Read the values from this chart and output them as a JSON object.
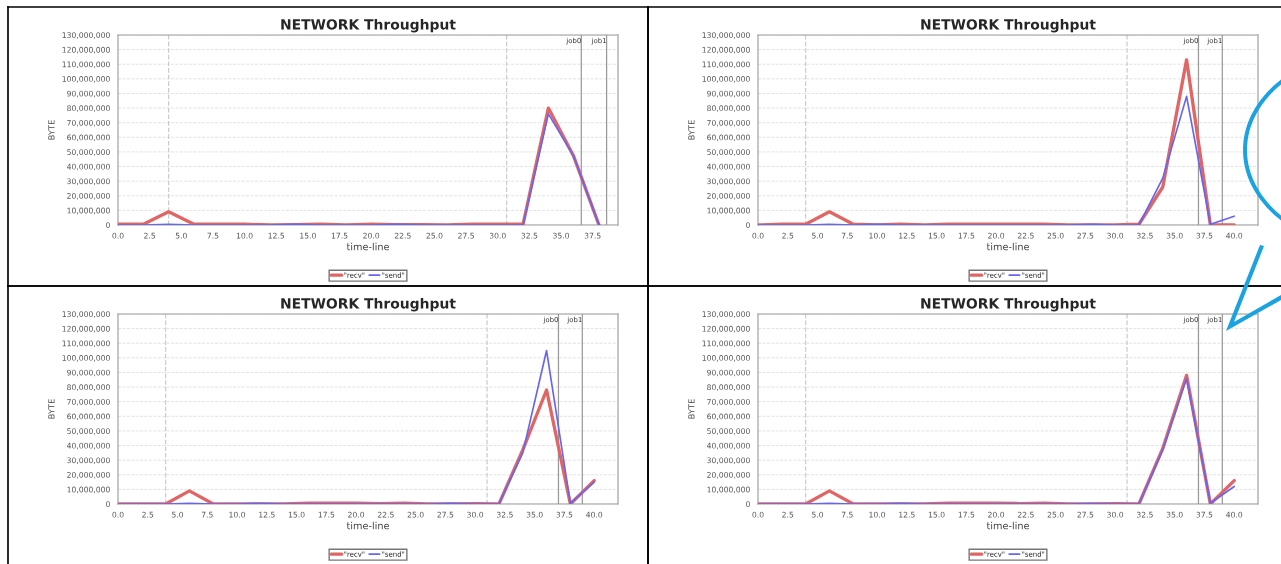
{
  "chart_data": [
    {
      "type": "line",
      "title": "NETWORK Throughput",
      "xlabel": "time-line",
      "ylabel": "BYTE",
      "x": [
        0,
        2,
        4,
        6,
        8,
        10,
        12,
        14,
        16,
        18,
        20,
        22,
        24,
        26,
        28,
        30,
        32,
        34,
        36,
        38
      ],
      "series": [
        {
          "name": "\"recv\"",
          "color": "#e06666",
          "values": [
            500000,
            500000,
            9000000,
            500000,
            500000,
            500000,
            0,
            300000,
            500000,
            0,
            500000,
            300000,
            300000,
            0,
            500000,
            500000,
            500000,
            80000000,
            47000000,
            0
          ]
        },
        {
          "name": "\"send\"",
          "color": "#6666ee",
          "values": [
            0,
            0,
            500000,
            0,
            0,
            0,
            0,
            500000,
            0,
            0,
            0,
            500000,
            0,
            0,
            0,
            0,
            0,
            76000000,
            47000000,
            0
          ]
        }
      ],
      "xlim": [
        0,
        39.5
      ],
      "xticks": [
        {
          "value": 0,
          "label": "0.0"
        },
        {
          "value": 2.5,
          "label": "2.5"
        },
        {
          "value": 5,
          "label": "5.0"
        },
        {
          "value": 7.5,
          "label": "7.5"
        },
        {
          "value": 10,
          "label": "10.0"
        },
        {
          "value": 12.5,
          "label": "12.5"
        },
        {
          "value": 15,
          "label": "15.0"
        },
        {
          "value": 17.5,
          "label": "17.5"
        },
        {
          "value": 20,
          "label": "20.0"
        },
        {
          "value": 22.5,
          "label": "22.5"
        },
        {
          "value": 25,
          "label": "25.0"
        },
        {
          "value": 27.5,
          "label": "27.5"
        },
        {
          "value": 30,
          "label": "30.0"
        },
        {
          "value": 32.5,
          "label": "32.5"
        },
        {
          "value": 35,
          "label": "35.0"
        },
        {
          "value": 37.5,
          "label": "37.5"
        }
      ],
      "ylim": [
        0,
        130000000
      ],
      "yticks": [
        0,
        {
          "value": 10000000,
          "label": "10,000,000"
        },
        {
          "value": 20000000,
          "label": "20,000,000"
        },
        {
          "value": 30000000,
          "label": "30,000,000"
        },
        {
          "value": 40000000,
          "label": "40,000,000"
        },
        {
          "value": 50000000,
          "label": "50,000,000"
        },
        {
          "value": 60000000,
          "label": "60,000,000"
        },
        {
          "value": 70000000,
          "label": "70,000,000"
        },
        {
          "value": 80000000,
          "label": "80,000,000"
        },
        {
          "value": 90000000,
          "label": "90,000,000"
        },
        {
          "value": 100000000,
          "label": "100,000,000"
        },
        {
          "value": 110000000,
          "label": "110,000,000"
        },
        {
          "value": 120000000,
          "label": "120,000,000"
        },
        {
          "value": 130000000,
          "label": "130,000,000"
        }
      ],
      "ref_lines": [
        {
          "axis": "x",
          "value": 4,
          "line_style": "dashed",
          "color": "#cccccc"
        },
        {
          "axis": "x",
          "value": 30.7,
          "line_style": "dashed",
          "color": "#cccccc"
        },
        {
          "axis": "x",
          "value": 36.6,
          "label": "job0",
          "line_style": "solid",
          "color": "#999999"
        },
        {
          "axis": "x",
          "value": 38.6,
          "label": "job1",
          "line_style": "solid",
          "color": "#999999"
        }
      ],
      "grid": "y",
      "legend": "bottom",
      "marker": "none",
      "line_style": "solid"
    },
    {
      "type": "line",
      "title": "NETWORK Throughput",
      "xlabel": "time-line",
      "ylabel": "BYTE",
      "x": [
        0,
        2,
        4,
        6,
        8,
        10,
        12,
        14,
        16,
        18,
        20,
        22,
        24,
        26,
        28,
        30,
        32,
        34,
        36,
        38,
        40
      ],
      "series": [
        {
          "name": "\"recv\"",
          "color": "#e06666",
          "values": [
            0,
            500000,
            500000,
            9000000,
            500000,
            0,
            500000,
            0,
            500000,
            500000,
            500000,
            500000,
            500000,
            0,
            0,
            0,
            500000,
            26000000,
            113000000,
            0,
            0
          ]
        },
        {
          "name": "\"send\"",
          "color": "#6666ee",
          "values": [
            0,
            0,
            0,
            500000,
            0,
            500000,
            0,
            0,
            0,
            0,
            0,
            0,
            0,
            0,
            500000,
            0,
            0,
            32000000,
            88000000,
            500000,
            6000000
          ]
        }
      ],
      "xlim": [
        0,
        42
      ],
      "xticks": [
        {
          "value": 0,
          "label": "0.0"
        },
        {
          "value": 2.5,
          "label": "2.5"
        },
        {
          "value": 5,
          "label": "5.0"
        },
        {
          "value": 7.5,
          "label": "7.5"
        },
        {
          "value": 10,
          "label": "10.0"
        },
        {
          "value": 12.5,
          "label": "12.5"
        },
        {
          "value": 15,
          "label": "15.0"
        },
        {
          "value": 17.5,
          "label": "17.5"
        },
        {
          "value": 20,
          "label": "20.0"
        },
        {
          "value": 22.5,
          "label": "22.5"
        },
        {
          "value": 25,
          "label": "25.0"
        },
        {
          "value": 27.5,
          "label": "27.5"
        },
        {
          "value": 30,
          "label": "30.0"
        },
        {
          "value": 32.5,
          "label": "32.5"
        },
        {
          "value": 35,
          "label": "35.0"
        },
        {
          "value": 37.5,
          "label": "37.5"
        },
        {
          "value": 40,
          "label": "40.0"
        }
      ],
      "ylim": [
        0,
        130000000
      ],
      "yticks": [
        0,
        {
          "value": 10000000,
          "label": "10,000,000"
        },
        {
          "value": 20000000,
          "label": "20,000,000"
        },
        {
          "value": 30000000,
          "label": "30,000,000"
        },
        {
          "value": 40000000,
          "label": "40,000,000"
        },
        {
          "value": 50000000,
          "label": "50,000,000"
        },
        {
          "value": 60000000,
          "label": "60,000,000"
        },
        {
          "value": 70000000,
          "label": "70,000,000"
        },
        {
          "value": 80000000,
          "label": "80,000,000"
        },
        {
          "value": 90000000,
          "label": "90,000,000"
        },
        {
          "value": 100000000,
          "label": "100,000,000"
        },
        {
          "value": 110000000,
          "label": "110,000,000"
        },
        {
          "value": 120000000,
          "label": "120,000,000"
        },
        {
          "value": 130000000,
          "label": "130,000,000"
        }
      ],
      "ref_lines": [
        {
          "axis": "x",
          "value": 4,
          "line_style": "dashed",
          "color": "#cccccc"
        },
        {
          "axis": "x",
          "value": 31,
          "line_style": "dashed",
          "color": "#cccccc"
        },
        {
          "axis": "x",
          "value": 37,
          "label": "job0",
          "line_style": "solid",
          "color": "#999999"
        },
        {
          "axis": "x",
          "value": 39,
          "label": "job1",
          "line_style": "solid",
          "color": "#999999"
        }
      ],
      "grid": "y",
      "legend": "bottom",
      "marker": "none",
      "line_style": "solid"
    },
    {
      "type": "line",
      "title": "NETWORK Throughput",
      "xlabel": "time-line",
      "ylabel": "BYTE",
      "x": [
        0,
        2,
        4,
        6,
        8,
        10,
        12,
        14,
        16,
        18,
        20,
        22,
        24,
        26,
        28,
        30,
        32,
        34,
        36,
        38,
        40
      ],
      "series": [
        {
          "name": "\"recv\"",
          "color": "#e06666",
          "values": [
            0,
            0,
            0,
            9000000,
            0,
            0,
            0,
            0,
            500000,
            500000,
            500000,
            300000,
            500000,
            0,
            0,
            300000,
            0,
            37000000,
            78000000,
            0,
            16000000
          ]
        },
        {
          "name": "\"send\"",
          "color": "#6666ee",
          "values": [
            0,
            0,
            0,
            500000,
            0,
            0,
            500000,
            0,
            0,
            0,
            0,
            0,
            0,
            0,
            500000,
            0,
            0,
            35000000,
            105000000,
            500000,
            15000000
          ]
        }
      ],
      "xlim": [
        0,
        42
      ],
      "xticks": [
        {
          "value": 0,
          "label": "0.0"
        },
        {
          "value": 2.5,
          "label": "2.5"
        },
        {
          "value": 5,
          "label": "5.0"
        },
        {
          "value": 7.5,
          "label": "7.5"
        },
        {
          "value": 10,
          "label": "10.0"
        },
        {
          "value": 12.5,
          "label": "12.5"
        },
        {
          "value": 15,
          "label": "15.0"
        },
        {
          "value": 17.5,
          "label": "17.5"
        },
        {
          "value": 20,
          "label": "20.0"
        },
        {
          "value": 22.5,
          "label": "22.5"
        },
        {
          "value": 25,
          "label": "25.0"
        },
        {
          "value": 27.5,
          "label": "27.5"
        },
        {
          "value": 30,
          "label": "30.0"
        },
        {
          "value": 32.5,
          "label": "32.5"
        },
        {
          "value": 35,
          "label": "35.0"
        },
        {
          "value": 37.5,
          "label": "37.5"
        },
        {
          "value": 40,
          "label": "40.0"
        }
      ],
      "ylim": [
        0,
        130000000
      ],
      "yticks": [
        0,
        {
          "value": 10000000,
          "label": "10,000,000"
        },
        {
          "value": 20000000,
          "label": "20,000,000"
        },
        {
          "value": 30000000,
          "label": "30,000,000"
        },
        {
          "value": 40000000,
          "label": "40,000,000"
        },
        {
          "value": 50000000,
          "label": "50,000,000"
        },
        {
          "value": 60000000,
          "label": "60,000,000"
        },
        {
          "value": 70000000,
          "label": "70,000,000"
        },
        {
          "value": 80000000,
          "label": "80,000,000"
        },
        {
          "value": 90000000,
          "label": "90,000,000"
        },
        {
          "value": 100000000,
          "label": "100,000,000"
        },
        {
          "value": 110000000,
          "label": "110,000,000"
        },
        {
          "value": 120000000,
          "label": "120,000,000"
        },
        {
          "value": 130000000,
          "label": "130,000,000"
        }
      ],
      "ref_lines": [
        {
          "axis": "x",
          "value": 4,
          "line_style": "dashed",
          "color": "#cccccc"
        },
        {
          "axis": "x",
          "value": 31,
          "line_style": "dashed",
          "color": "#cccccc"
        },
        {
          "axis": "x",
          "value": 37,
          "label": "job0",
          "line_style": "solid",
          "color": "#999999"
        },
        {
          "axis": "x",
          "value": 39,
          "label": "job1",
          "line_style": "solid",
          "color": "#999999"
        }
      ],
      "grid": "y",
      "legend": "bottom",
      "marker": "none",
      "line_style": "solid"
    },
    {
      "type": "line",
      "title": "NETWORK Throughput",
      "xlabel": "time-line",
      "ylabel": "BYTE",
      "x": [
        0,
        2,
        4,
        6,
        8,
        10,
        12,
        14,
        16,
        18,
        20,
        22,
        24,
        26,
        28,
        30,
        32,
        34,
        36,
        38,
        40
      ],
      "series": [
        {
          "name": "\"recv\"",
          "color": "#e06666",
          "values": [
            0,
            0,
            0,
            9000000,
            0,
            0,
            0,
            0,
            500000,
            500000,
            500000,
            300000,
            500000,
            0,
            0,
            300000,
            0,
            38000000,
            88000000,
            0,
            16000000
          ]
        },
        {
          "name": "\"send\"",
          "color": "#6666ee",
          "values": [
            0,
            0,
            0,
            500000,
            0,
            0,
            500000,
            0,
            0,
            0,
            0,
            0,
            0,
            0,
            300000,
            0,
            0,
            37000000,
            86000000,
            500000,
            12000000
          ]
        }
      ],
      "xlim": [
        0,
        42
      ],
      "xticks": [
        {
          "value": 0,
          "label": "0.0"
        },
        {
          "value": 2.5,
          "label": "2.5"
        },
        {
          "value": 5,
          "label": "5.0"
        },
        {
          "value": 7.5,
          "label": "7.5"
        },
        {
          "value": 10,
          "label": "10.0"
        },
        {
          "value": 12.5,
          "label": "12.5"
        },
        {
          "value": 15,
          "label": "15.0"
        },
        {
          "value": 17.5,
          "label": "17.5"
        },
        {
          "value": 20,
          "label": "20.0"
        },
        {
          "value": 22.5,
          "label": "22.5"
        },
        {
          "value": 25,
          "label": "25.0"
        },
        {
          "value": 27.5,
          "label": "27.5"
        },
        {
          "value": 30,
          "label": "30.0"
        },
        {
          "value": 32.5,
          "label": "32.5"
        },
        {
          "value": 35,
          "label": "35.0"
        },
        {
          "value": 37.5,
          "label": "37.5"
        },
        {
          "value": 40,
          "label": "40.0"
        }
      ],
      "ylim": [
        0,
        130000000
      ],
      "yticks": [
        0,
        {
          "value": 10000000,
          "label": "10,000,000"
        },
        {
          "value": 20000000,
          "label": "20,000,000"
        },
        {
          "value": 30000000,
          "label": "30,000,000"
        },
        {
          "value": 40000000,
          "label": "40,000,000"
        },
        {
          "value": 50000000,
          "label": "50,000,000"
        },
        {
          "value": 60000000,
          "label": "60,000,000"
        },
        {
          "value": 70000000,
          "label": "70,000,000"
        },
        {
          "value": 80000000,
          "label": "80,000,000"
        },
        {
          "value": 90000000,
          "label": "90,000,000"
        },
        {
          "value": 100000000,
          "label": "100,000,000"
        },
        {
          "value": 110000000,
          "label": "110,000,000"
        },
        {
          "value": 120000000,
          "label": "120,000,000"
        },
        {
          "value": 130000000,
          "label": "130,000,000"
        }
      ],
      "ref_lines": [
        {
          "axis": "x",
          "value": 4,
          "line_style": "dashed",
          "color": "#cccccc"
        },
        {
          "axis": "x",
          "value": 31,
          "line_style": "dashed",
          "color": "#cccccc"
        },
        {
          "axis": "x",
          "value": 37,
          "label": "job0",
          "line_style": "solid",
          "color": "#999999"
        },
        {
          "axis": "x",
          "value": 39,
          "label": "job1",
          "line_style": "solid",
          "color": "#999999"
        }
      ],
      "grid": "y",
      "legend": "bottom",
      "marker": "none",
      "line_style": "solid"
    }
  ]
}
